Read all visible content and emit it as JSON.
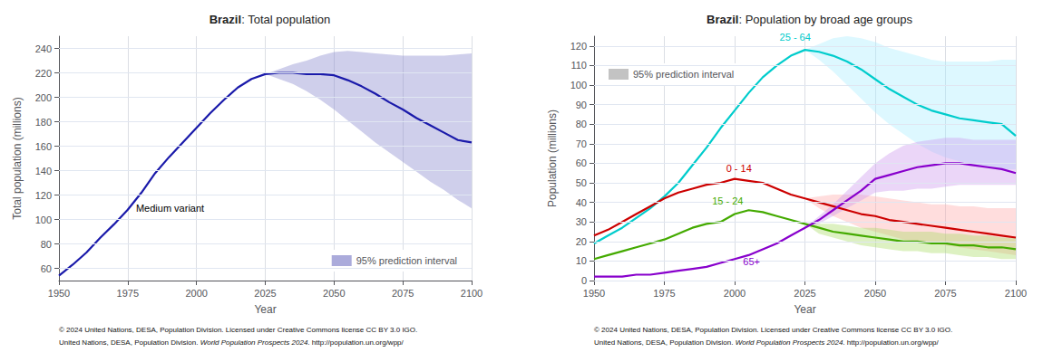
{
  "chart_data": [
    {
      "type": "line",
      "title": "Brazil: Total population",
      "xlabel": "Year",
      "ylabel": "Total population (millions)",
      "xlim": [
        1950,
        2100
      ],
      "ylim": [
        50,
        250
      ],
      "xticks": [
        1950,
        1975,
        2000,
        2025,
        2050,
        2075,
        2100
      ],
      "yticks": [
        60,
        80,
        100,
        120,
        140,
        160,
        180,
        200,
        220,
        240
      ],
      "grid": true,
      "legend": "lower right",
      "legend_label": "95% prediction interval",
      "x": [
        1950,
        1955,
        1960,
        1965,
        1970,
        1975,
        1980,
        1985,
        1990,
        1995,
        2000,
        2005,
        2010,
        2015,
        2020,
        2025,
        2030,
        2035,
        2040,
        2045,
        2050,
        2055,
        2060,
        2065,
        2070,
        2075,
        2080,
        2085,
        2090,
        2095,
        2100
      ],
      "series": [
        {
          "color": "#1a1aaa",
          "band_color": "#8888cc",
          "values": [
            54,
            63,
            73,
            85,
            96,
            108,
            122,
            138,
            151,
            163,
            175,
            187,
            198,
            208,
            215,
            219,
            220,
            220,
            219,
            219,
            218,
            214,
            209,
            203,
            196,
            190,
            183,
            177,
            171,
            165,
            163
          ],
          "lower": [
            null,
            null,
            null,
            null,
            null,
            null,
            null,
            null,
            null,
            null,
            null,
            null,
            null,
            null,
            null,
            219,
            215,
            211,
            205,
            198,
            190,
            181,
            172,
            163,
            155,
            147,
            139,
            131,
            124,
            116,
            109
          ],
          "upper": [
            null,
            null,
            null,
            null,
            null,
            null,
            null,
            null,
            null,
            null,
            null,
            null,
            null,
            null,
            null,
            219,
            223,
            227,
            230,
            234,
            237,
            238,
            237,
            236,
            235,
            234,
            234,
            234,
            234,
            235,
            236
          ]
        }
      ],
      "annotations": [
        {
          "text": "Medium variant",
          "x": 1978,
          "y": 105,
          "color": "#000000"
        }
      ],
      "footnotes": [
        [
          "© 2024 United Nations, DESA, Population Division. Licensed under Creative Commons license CC BY 3.0 IGO."
        ],
        [
          "United Nations, DESA, Population Division. ",
          "World Population Prospects 2024",
          ". http://population.un.org/wpp/"
        ]
      ]
    },
    {
      "type": "line",
      "title": "Brazil: Population by broad age groups",
      "xlabel": "Year",
      "ylabel": "Population (millions)",
      "xlim": [
        1950,
        2100
      ],
      "ylim": [
        0,
        125
      ],
      "xticks": [
        1950,
        1975,
        2000,
        2025,
        2050,
        2075,
        2100
      ],
      "yticks": [
        0,
        10,
        20,
        30,
        40,
        50,
        60,
        70,
        80,
        90,
        100,
        110,
        120
      ],
      "grid": true,
      "legend": "upper left",
      "legend_label": "95% prediction interval",
      "legend_color": "#aaaaaa",
      "x": [
        1950,
        1955,
        1960,
        1965,
        1970,
        1975,
        1980,
        1985,
        1990,
        1995,
        2000,
        2005,
        2010,
        2015,
        2020,
        2025,
        2030,
        2035,
        2040,
        2045,
        2050,
        2055,
        2060,
        2065,
        2070,
        2075,
        2080,
        2085,
        2090,
        2095,
        2100
      ],
      "series": [
        {
          "color": "#00cccc",
          "band_color": "#aaeeff",
          "values": [
            19,
            23,
            27,
            32,
            37,
            43,
            50,
            59,
            68,
            78,
            87,
            96,
            104,
            110,
            115,
            118,
            117,
            115,
            112,
            108,
            103,
            98,
            94,
            90,
            87,
            85,
            83,
            82,
            81,
            80,
            74
          ],
          "lower": [
            null,
            null,
            null,
            null,
            null,
            null,
            null,
            null,
            null,
            null,
            null,
            null,
            null,
            null,
            null,
            118,
            113,
            107,
            100,
            93,
            86,
            80,
            75,
            70,
            66,
            63,
            61,
            59,
            58,
            57,
            57
          ],
          "upper": [
            null,
            null,
            null,
            null,
            null,
            null,
            null,
            null,
            null,
            null,
            null,
            null,
            null,
            null,
            null,
            118,
            121,
            124,
            125,
            124,
            122,
            119,
            117,
            115,
            113,
            112,
            112,
            112,
            112,
            113,
            113
          ]
        },
        {
          "color": "#cc0000",
          "band_color": "#ffaaaa",
          "values": [
            23,
            26,
            30,
            34,
            38,
            42,
            45,
            47,
            49,
            50,
            52,
            51,
            50,
            47,
            44,
            42,
            40,
            38,
            36,
            34,
            33,
            31,
            30,
            29,
            28,
            27,
            26,
            25,
            24,
            23,
            22
          ],
          "lower": [
            null,
            null,
            null,
            null,
            null,
            null,
            null,
            null,
            null,
            null,
            null,
            null,
            null,
            null,
            null,
            42,
            37,
            33,
            30,
            27,
            25,
            23,
            21,
            20,
            19,
            18,
            17,
            16,
            15,
            14,
            13
          ],
          "upper": [
            null,
            null,
            null,
            null,
            null,
            null,
            null,
            null,
            null,
            null,
            null,
            null,
            null,
            null,
            null,
            42,
            43,
            44,
            44,
            44,
            43,
            42,
            41,
            40,
            39,
            39,
            38,
            38,
            37,
            37,
            37
          ]
        },
        {
          "color": "#44aa00",
          "band_color": "#aadd66",
          "values": [
            11,
            13,
            15,
            17,
            19,
            21,
            24,
            27,
            29,
            30,
            34,
            36,
            35,
            33,
            31,
            29,
            27,
            25,
            24,
            23,
            22,
            21,
            20,
            20,
            19,
            19,
            18,
            18,
            17,
            17,
            16
          ],
          "lower": [
            null,
            null,
            null,
            null,
            null,
            null,
            null,
            null,
            null,
            null,
            null,
            null,
            null,
            null,
            null,
            29,
            24,
            22,
            20,
            18,
            17,
            16,
            15,
            15,
            14,
            14,
            13,
            12,
            12,
            11,
            11
          ],
          "upper": [
            null,
            null,
            null,
            null,
            null,
            null,
            null,
            null,
            null,
            null,
            null,
            null,
            null,
            null,
            null,
            29,
            29,
            29,
            28,
            27,
            27,
            26,
            25,
            25,
            25,
            24,
            24,
            23,
            23,
            22,
            22
          ]
        },
        {
          "color": "#8800cc",
          "band_color": "#cc99ee",
          "values": [
            2,
            2,
            2,
            3,
            3,
            4,
            5,
            6,
            7,
            9,
            11,
            13,
            16,
            19,
            23,
            27,
            31,
            36,
            41,
            46,
            52,
            54,
            56,
            58,
            59,
            60,
            60,
            59,
            58,
            57,
            55
          ],
          "lower": [
            null,
            null,
            null,
            null,
            null,
            null,
            null,
            null,
            null,
            null,
            null,
            null,
            null,
            null,
            null,
            27,
            29,
            33,
            37,
            41,
            45,
            46,
            46,
            47,
            47,
            48,
            49,
            49,
            49,
            49,
            49
          ],
          "upper": [
            null,
            null,
            null,
            null,
            null,
            null,
            null,
            null,
            null,
            null,
            null,
            null,
            null,
            null,
            null,
            27,
            33,
            39,
            46,
            53,
            60,
            65,
            69,
            71,
            72,
            73,
            73,
            72,
            72,
            72,
            72
          ]
        }
      ],
      "annotations": [
        {
          "text": "25 - 64",
          "x": 2016,
          "y": 122,
          "color": "#00cccc"
        },
        {
          "text": "0 - 14",
          "x": 1997,
          "y": 55,
          "color": "#cc0000"
        },
        {
          "text": "15 - 24",
          "x": 1992,
          "y": 38,
          "color": "#44aa00"
        },
        {
          "text": "65+",
          "x": 2003,
          "y": 7,
          "color": "#8800cc"
        }
      ],
      "footnotes": [
        [
          "© 2024 United Nations, DESA, Population Division. Licensed under Creative Commons license CC BY 3.0 IGO."
        ],
        [
          "United Nations, DESA, Population Division. ",
          "World Population Prospects 2024",
          ". http://population.un.org/wpp/"
        ]
      ]
    }
  ]
}
